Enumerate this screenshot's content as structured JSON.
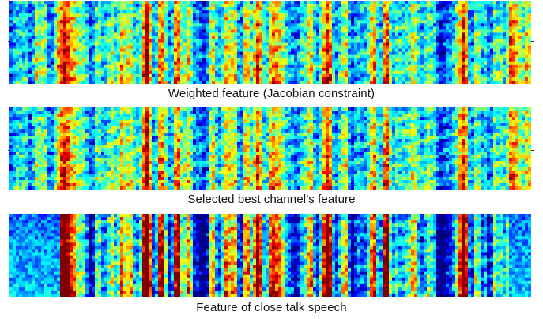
{
  "panels": [
    {
      "id": "weighted",
      "caption": "Weighted feature (Jacobian constraint)",
      "seed": 11,
      "contrast": 0.55,
      "blue_edges": false
    },
    {
      "id": "selected",
      "caption": "Selected best channel’s feature",
      "seed": 23,
      "contrast": 0.5,
      "blue_edges": false
    },
    {
      "id": "closetalk",
      "caption": "Feature of close talk speech",
      "seed": 37,
      "contrast": 1.0,
      "blue_edges": true
    }
  ],
  "colormap": "jet"
}
